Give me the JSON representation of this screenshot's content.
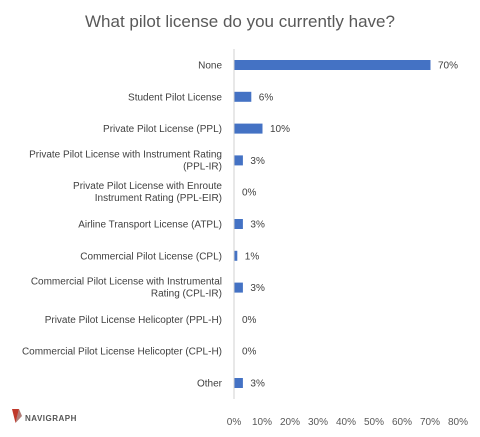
{
  "chart_data": {
    "type": "bar",
    "orientation": "horizontal",
    "title": "What pilot license do you currently have?",
    "categories": [
      "None",
      "Student Pilot License",
      "Private Pilot License (PPL)",
      "Private Pilot License with Instrument Rating|(PPL-IR)",
      "Private Pilot License with Enroute|Instrument Rating (PPL-EIR)",
      "Airline Transport License (ATPL)",
      "Commercial Pilot License (CPL)",
      "Commercial Pilot License with Instrumental|Rating (CPL-IR)",
      "Private Pilot License Helicopter (PPL-H)",
      "Commercial Pilot License Helicopter (CPL-H)",
      "Other"
    ],
    "values": [
      70,
      6,
      10,
      3,
      0,
      3,
      1,
      3,
      0,
      0,
      3
    ],
    "value_labels": [
      "70%",
      "6%",
      "10%",
      "3%",
      "0%",
      "3%",
      "1%",
      "3%",
      "0%",
      "0%",
      "3%"
    ],
    "xticks": [
      "0%",
      "10%",
      "20%",
      "30%",
      "40%",
      "50%",
      "60%",
      "70%",
      "80%"
    ],
    "xlim": [
      0,
      80
    ],
    "bar_color": "#4472C4",
    "grid": false,
    "legend": "none"
  },
  "logo": {
    "text": "NAVIGRAPH",
    "accent_color": "#C0392B"
  }
}
